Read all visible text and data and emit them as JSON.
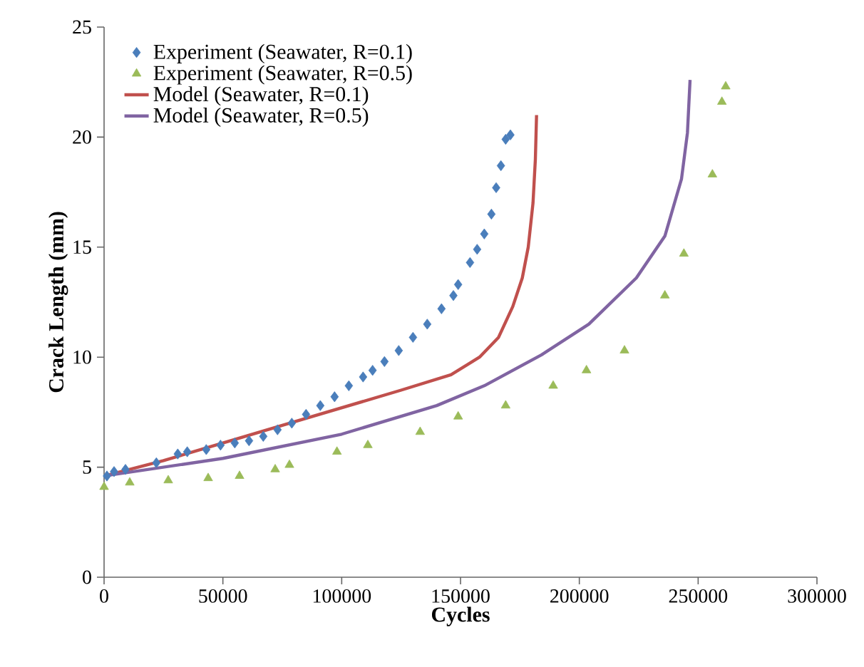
{
  "chart_data": {
    "type": "scatter",
    "xlabel": "Cycles",
    "ylabel": "Crack Length (mm)",
    "xlim": [
      0,
      300000
    ],
    "ylim": [
      0,
      25
    ],
    "xticks": [
      0,
      50000,
      100000,
      150000,
      200000,
      250000,
      300000
    ],
    "yticks": [
      0,
      5,
      10,
      15,
      20,
      25
    ],
    "grid": false,
    "legend": "top left",
    "series": [
      {
        "name": "Experiment (Seawater, R=0.1)",
        "marker": "diamond",
        "color": "#4a7ebb",
        "x": [
          1200,
          4200,
          9000,
          22000,
          31000,
          35000,
          43000,
          49000,
          55000,
          61000,
          67000,
          73000,
          79000,
          85000,
          91000,
          97000,
          103000,
          109000,
          113000,
          118000,
          124000,
          130000,
          136000,
          142000,
          147000,
          149000,
          154000,
          157000,
          160000,
          163000,
          165000,
          167000,
          169000,
          171000
        ],
        "values": [
          4.6,
          4.8,
          4.9,
          5.2,
          5.6,
          5.7,
          5.8,
          6.0,
          6.1,
          6.2,
          6.4,
          6.7,
          7.0,
          7.4,
          7.8,
          8.2,
          8.7,
          9.1,
          9.4,
          9.8,
          10.3,
          10.9,
          11.5,
          12.2,
          12.8,
          13.3,
          14.3,
          14.9,
          15.6,
          16.5,
          17.7,
          18.7,
          19.9,
          20.1
        ]
      },
      {
        "name": "Experiment (Seawater, R=0.5)",
        "marker": "triangle",
        "color": "#9bbb59",
        "x": [
          0,
          10800,
          27000,
          43800,
          57000,
          72000,
          78000,
          98000,
          111000,
          133000,
          149000,
          169000,
          189000,
          203000,
          219000,
          236000,
          244000,
          256000,
          260000,
          261600
        ],
        "values": [
          4.1,
          4.3,
          4.4,
          4.5,
          4.6,
          4.9,
          5.1,
          5.7,
          6.0,
          6.6,
          7.3,
          7.8,
          8.7,
          9.4,
          10.3,
          12.8,
          14.7,
          18.3,
          21.6,
          22.3
        ]
      },
      {
        "name": "Model (Seawater, R=0.1)",
        "type": "line",
        "marker": "none",
        "color": "#c0504d",
        "x": [
          0,
          25000,
          50000,
          75000,
          100000,
          125000,
          146000,
          158000,
          166000,
          172000,
          176000,
          178500,
          180500,
          181500,
          182000
        ],
        "values": [
          4.6,
          5.3,
          6.1,
          6.9,
          7.7,
          8.5,
          9.2,
          10.0,
          10.9,
          12.3,
          13.6,
          15.0,
          17.0,
          19.0,
          21.0
        ]
      },
      {
        "name": "Model (Seawater, R=0.5)",
        "type": "line",
        "marker": "none",
        "color": "#8064a2",
        "x": [
          0,
          50000,
          100000,
          140000,
          160000,
          184000,
          204000,
          224000,
          236000,
          243000,
          245500,
          246600
        ],
        "values": [
          4.6,
          5.4,
          6.5,
          7.8,
          8.7,
          10.1,
          11.5,
          13.6,
          15.5,
          18.1,
          20.2,
          22.6
        ]
      }
    ]
  }
}
